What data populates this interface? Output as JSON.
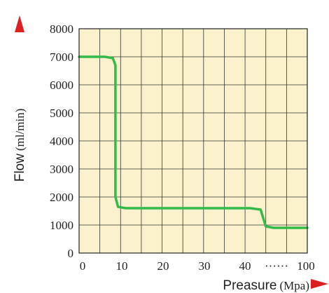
{
  "chart_data": {
    "type": "line",
    "title": "",
    "xlabel": {
      "text": "Preasure",
      "unit": "(Mpa)"
    },
    "ylabel": {
      "text": "Flow",
      "unit": "(ml/min)"
    },
    "x_tick_labels": [
      "0",
      "10",
      "20",
      "30",
      "40",
      "······",
      "100"
    ],
    "y_tick_labels": [
      "0",
      "1000",
      "2000",
      "3000",
      "4000",
      "5000",
      "6000",
      "7000",
      "8000"
    ],
    "xlim": [
      0,
      44
    ],
    "ylim": [
      0,
      8000
    ],
    "grid": true,
    "colors": {
      "background": "#fbf1cc",
      "grid": "#333333",
      "line": "#33bb4a",
      "arrow": "#dd1f1f"
    },
    "series": [
      {
        "name": "",
        "x": [
          0,
          5,
          6.5,
          7,
          7,
          7.5,
          9,
          33,
          35,
          35.5,
          36,
          37.5,
          44
        ],
        "y": [
          7000,
          7000,
          6950,
          6700,
          2000,
          1650,
          1600,
          1600,
          1550,
          1250,
          950,
          900,
          900
        ]
      }
    ]
  }
}
